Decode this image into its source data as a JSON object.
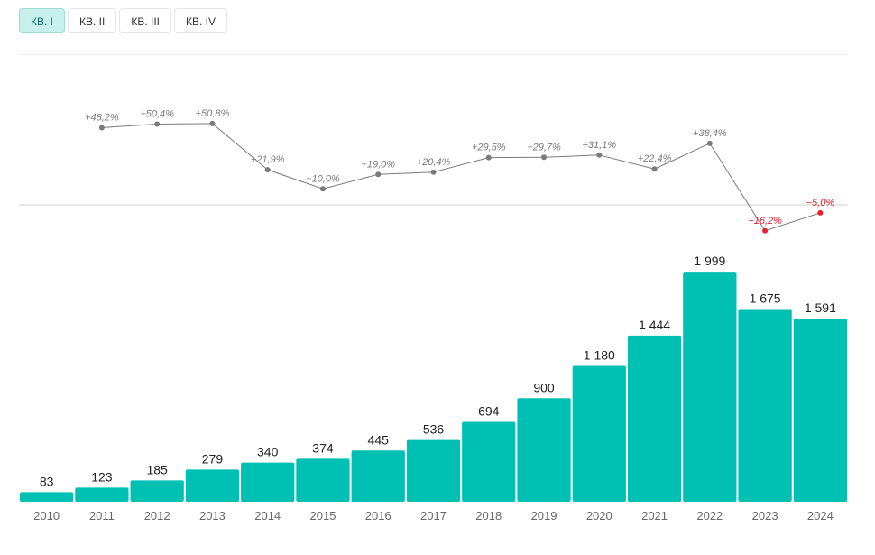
{
  "tabs": [
    {
      "label": "КВ. I",
      "active": true
    },
    {
      "label": "КВ. II",
      "active": false
    },
    {
      "label": "КВ. III",
      "active": false
    },
    {
      "label": "КВ. IV",
      "active": false
    }
  ],
  "colors": {
    "bar": "#00bfb3",
    "line": "#7a7a7a",
    "negative": "#e8202f",
    "label": "#222222",
    "axis_label": "#666666"
  },
  "chart_data": {
    "type": "bar",
    "categories": [
      "2010",
      "2011",
      "2012",
      "2013",
      "2014",
      "2015",
      "2016",
      "2017",
      "2018",
      "2019",
      "2020",
      "2021",
      "2022",
      "2023",
      "2024"
    ],
    "values": [
      83,
      123,
      185,
      279,
      340,
      374,
      445,
      536,
      694,
      900,
      1180,
      1444,
      1999,
      1675,
      1591
    ],
    "value_labels": [
      "83",
      "123",
      "185",
      "279",
      "340",
      "374",
      "445",
      "536",
      "694",
      "900",
      "1 180",
      "1 444",
      "1 999",
      "1 675",
      "1 591"
    ],
    "ylim": [
      0,
      2000
    ],
    "growth": {
      "type": "line",
      "values": [
        null,
        48.2,
        50.4,
        50.8,
        21.9,
        10.0,
        19.0,
        20.4,
        29.5,
        29.7,
        31.1,
        22.4,
        38.4,
        -16.2,
        -5.0
      ],
      "labels": [
        "",
        "+48,2%",
        "+50,4%",
        "+50,8%",
        "+21,9%",
        "+10,0%",
        "+19,0%",
        "+20,4%",
        "+29,5%",
        "+29,7%",
        "+31,1%",
        "+22,4%",
        "+38,4%",
        "−16,2%",
        "−5,0%"
      ]
    },
    "grid": false,
    "title": "",
    "xlabel": "",
    "ylabel": ""
  }
}
